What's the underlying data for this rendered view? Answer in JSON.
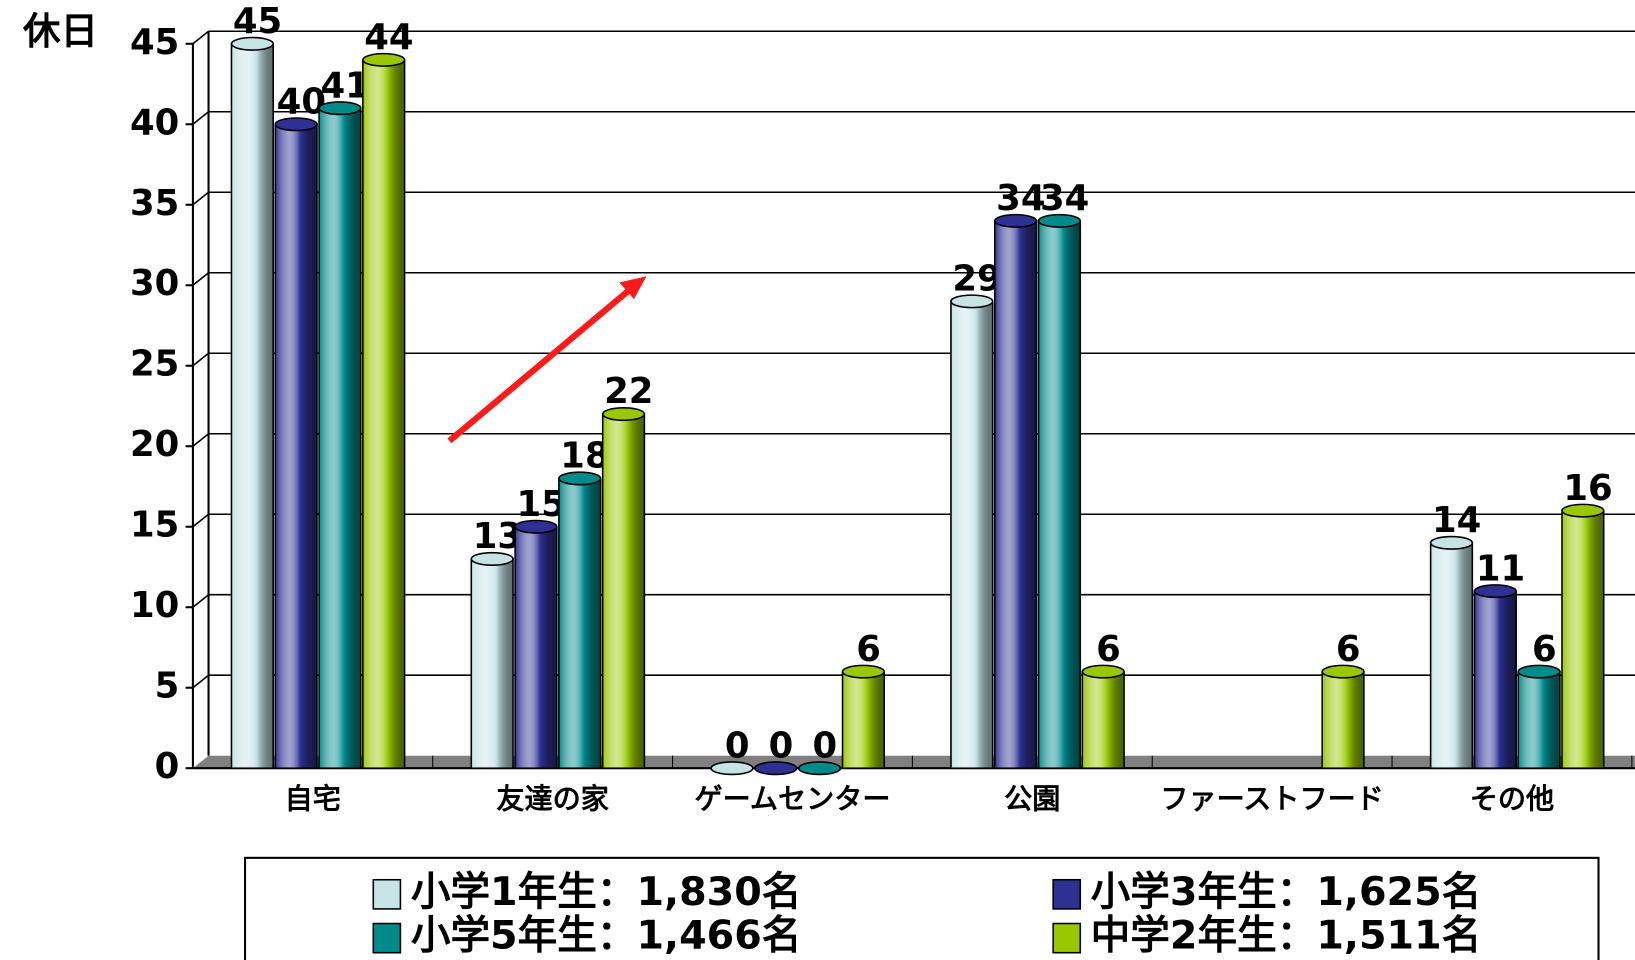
{
  "chart_data": {
    "type": "bar",
    "y_axis_label": "休日",
    "categories": [
      "自宅",
      "友達の家",
      "ゲームセンター",
      "公園",
      "ファーストフード",
      "その他"
    ],
    "series": [
      {
        "name": "小学1年生：1,830名",
        "color": "#c6e4e6",
        "values": [
          45,
          13,
          0,
          29,
          null,
          14
        ]
      },
      {
        "name": "小学3年生：1,625名",
        "color": "#2e3192",
        "values": [
          40,
          15,
          0,
          34,
          null,
          11
        ]
      },
      {
        "name": "小学5年生：1,466名",
        "color": "#008b8b",
        "values": [
          41,
          18,
          0,
          34,
          null,
          6
        ]
      },
      {
        "name": "中学2年生：1,511名",
        "color": "#99c800",
        "values": [
          44,
          22,
          6,
          6,
          6,
          16
        ]
      }
    ],
    "ylim": [
      0,
      45
    ],
    "yticks": [
      0,
      5,
      10,
      15,
      20,
      25,
      30,
      35,
      40,
      45
    ],
    "grid": true
  }
}
